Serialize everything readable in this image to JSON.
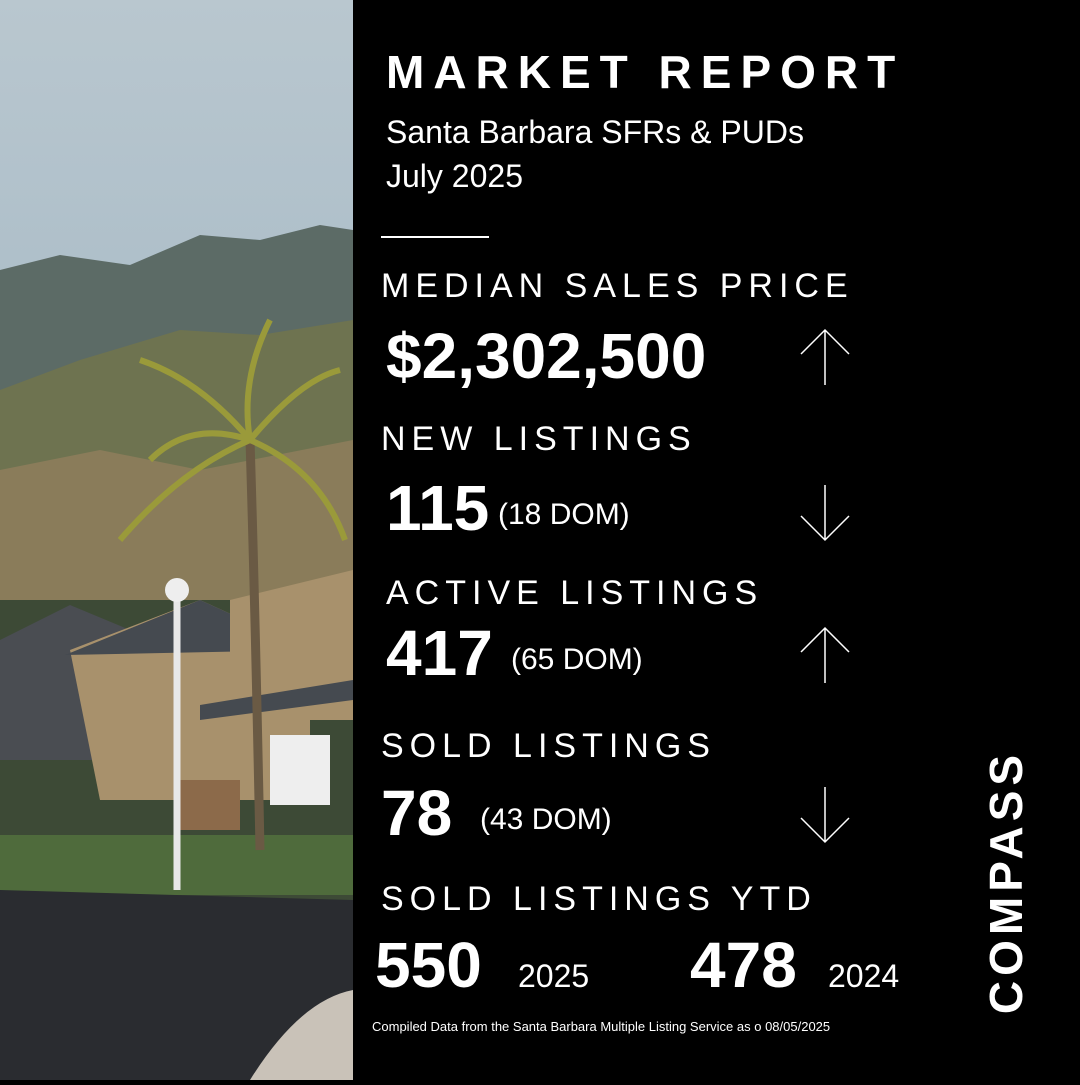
{
  "header": {
    "title": "MARKET REPORT",
    "subtitle": "Santa Barbara SFRs & PUDs",
    "date": "July 2025"
  },
  "metrics": [
    {
      "label": "MEDIAN SALES PRICE",
      "value": "$2,302,500",
      "trend": "up"
    },
    {
      "label": "NEW LISTINGS",
      "value": "115",
      "detail": "(18 DOM)",
      "trend": "down"
    },
    {
      "label": "ACTIVE LISTINGS",
      "value": "417",
      "detail": "(65 DOM)",
      "trend": "up"
    },
    {
      "label": "SOLD LISTINGS",
      "value": "78",
      "detail": "(43 DOM)",
      "trend": "down"
    }
  ],
  "ytd": {
    "label": "SOLD LISTINGS YTD",
    "current": {
      "value": "550",
      "year": "2025"
    },
    "previous": {
      "value": "478",
      "year": "2024"
    }
  },
  "footer": "Compiled Data from the Santa Barbara Multiple Listing Service as o 08/05/2025",
  "logo": "COMPASS"
}
